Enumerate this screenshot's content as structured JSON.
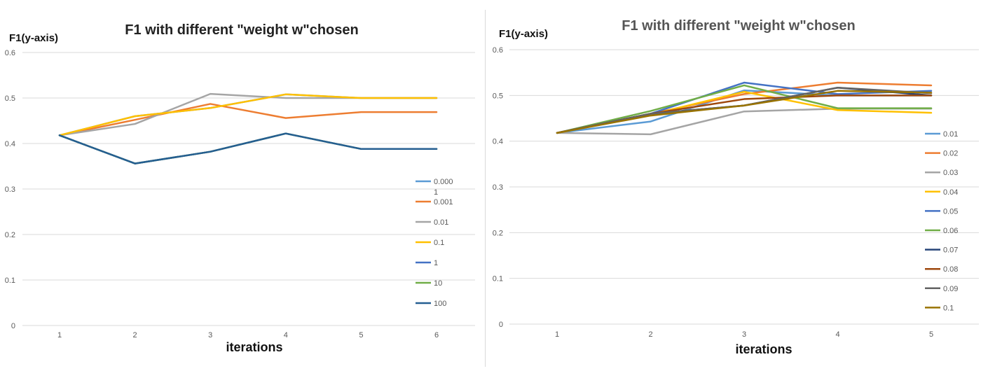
{
  "chart_data": [
    {
      "type": "line",
      "title": "F1 with different \"weight w\"chosen",
      "ylabel": "F1(y-axis)",
      "xlabel": "iterations",
      "x": [
        1,
        2,
        3,
        4,
        5,
        6
      ],
      "ylim": [
        0,
        0.6
      ],
      "yticks": [
        "0",
        "0.1",
        "0.2",
        "0.3",
        "0.4",
        "0.5",
        "0.6"
      ],
      "grid": true,
      "legend_position": "right",
      "series": [
        {
          "name": "0.000 1",
          "color": "#5b9bd5",
          "values": [
            0.418,
            0.46,
            0.478,
            0.508,
            0.5,
            0.5
          ]
        },
        {
          "name": "0.001",
          "color": "#ed7d31",
          "values": [
            0.418,
            0.452,
            0.487,
            0.456,
            0.469,
            0.469
          ]
        },
        {
          "name": "0.01",
          "color": "#a5a5a5",
          "values": [
            0.418,
            0.443,
            0.509,
            0.5,
            0.5,
            0.5
          ]
        },
        {
          "name": "0.1",
          "color": "#ffc000",
          "values": [
            0.418,
            0.46,
            0.478,
            0.508,
            0.5,
            0.5
          ]
        },
        {
          "name": "1",
          "color": "#4472c4",
          "values": [
            0.418,
            0.356,
            0.382,
            0.422,
            0.388,
            0.388
          ]
        },
        {
          "name": "10",
          "color": "#70ad47",
          "values": [
            0.418,
            0.356,
            0.382,
            0.422,
            0.388,
            0.388
          ]
        },
        {
          "name": "100",
          "color": "#255e91",
          "values": [
            0.418,
            0.356,
            0.382,
            0.422,
            0.388,
            0.388
          ]
        }
      ]
    },
    {
      "type": "line",
      "title": "F1 with different \"weight w\"chosen",
      "ylabel": "F1(y-axis)",
      "xlabel": "iterations",
      "x": [
        1,
        2,
        3,
        4,
        5
      ],
      "ylim": [
        0,
        0.6
      ],
      "yticks": [
        "0",
        "0.1",
        "0.2",
        "0.3",
        "0.4",
        "0.5",
        "0.6"
      ],
      "grid": true,
      "legend_position": "right",
      "series": [
        {
          "name": "0.01",
          "color": "#5b9bd5",
          "values": [
            0.418,
            0.443,
            0.511,
            0.5,
            0.5
          ]
        },
        {
          "name": "0.02",
          "color": "#ed7d31",
          "values": [
            0.418,
            0.46,
            0.503,
            0.528,
            0.522
          ]
        },
        {
          "name": "0.03",
          "color": "#a5a5a5",
          "values": [
            0.418,
            0.415,
            0.465,
            0.471,
            0.471
          ]
        },
        {
          "name": "0.04",
          "color": "#ffc000",
          "values": [
            0.418,
            0.458,
            0.508,
            0.468,
            0.462
          ]
        },
        {
          "name": "0.05",
          "color": "#4472c4",
          "values": [
            0.418,
            0.46,
            0.528,
            0.503,
            0.51
          ]
        },
        {
          "name": "0.06",
          "color": "#70ad47",
          "values": [
            0.418,
            0.466,
            0.522,
            0.472,
            0.472
          ]
        },
        {
          "name": "0.07",
          "color": "#264478",
          "values": [
            0.418,
            0.46,
            0.478,
            0.517,
            0.5
          ]
        },
        {
          "name": "0.08",
          "color": "#9e480e",
          "values": [
            0.418,
            0.46,
            0.492,
            0.5,
            0.5
          ]
        },
        {
          "name": "0.09",
          "color": "#636363",
          "values": [
            0.418,
            0.46,
            0.478,
            0.517,
            0.505
          ]
        },
        {
          "name": "0.1",
          "color": "#997300",
          "values": [
            0.418,
            0.456,
            0.478,
            0.51,
            0.506
          ]
        }
      ]
    }
  ]
}
